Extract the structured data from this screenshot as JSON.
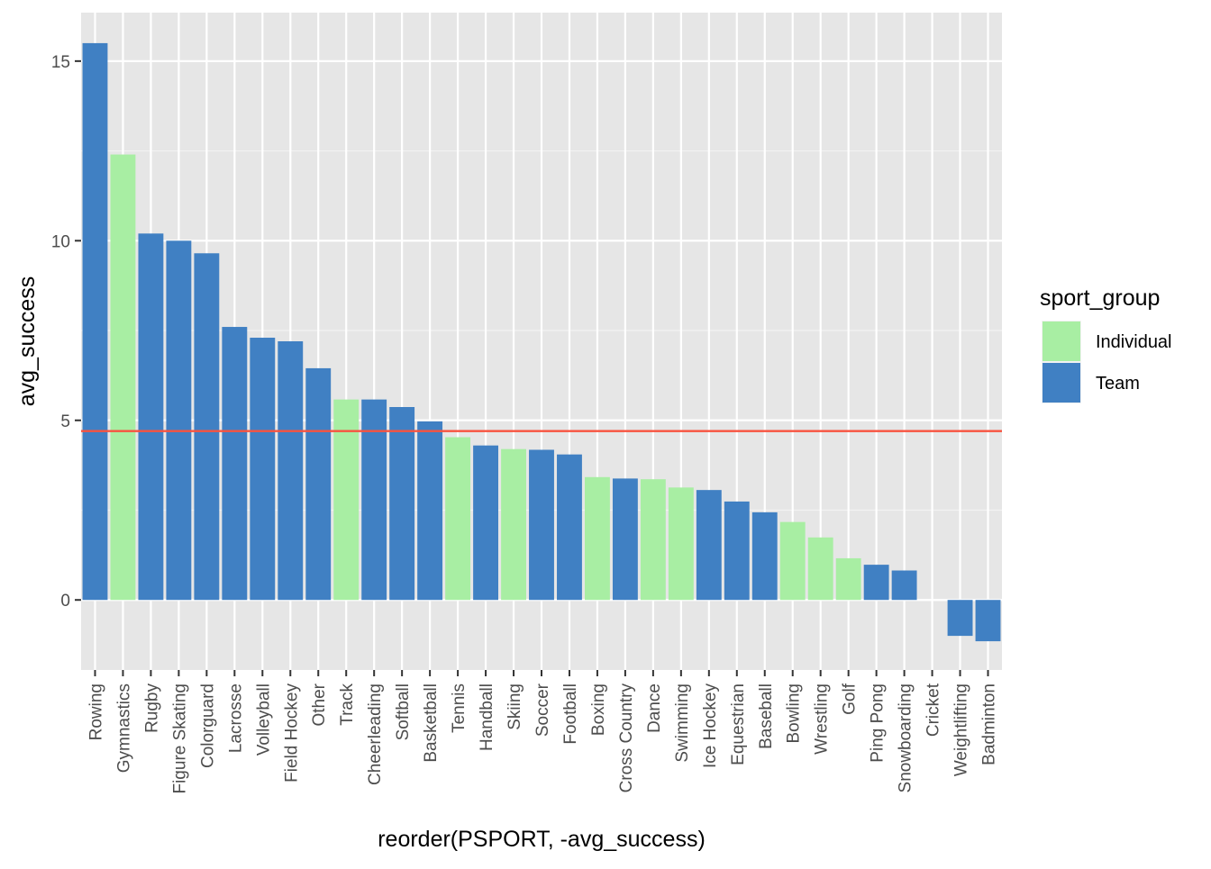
{
  "chart_data": {
    "type": "bar",
    "xlabel": "reorder(PSPORT, -avg_success)",
    "ylabel": "avg_success",
    "ylim": [
      -1.95,
      16.35
    ],
    "yticks": [
      0,
      5,
      10,
      15
    ],
    "grid": true,
    "reference_line": {
      "y": 4.7,
      "color": "#f8533f"
    },
    "legend": {
      "title": "sport_group",
      "position": "right",
      "entries": [
        {
          "name": "Individual",
          "color": "#a8eea3"
        },
        {
          "name": "Team",
          "color": "#4080c3"
        }
      ]
    },
    "categories": [
      "Rowing",
      "Gymnastics",
      "Rugby",
      "Figure Skating",
      "Colorguard",
      "Lacrosse",
      "Volleyball",
      "Field Hockey",
      "Other",
      "Track",
      "Cheerleading",
      "Softball",
      "Basketball",
      "Tennis",
      "Handball",
      "Skiing",
      "Soccer",
      "Football",
      "Boxing",
      "Cross Country",
      "Dance",
      "Swimming",
      "Ice Hockey",
      "Equestrian",
      "Baseball",
      "Bowling",
      "Wrestling",
      "Golf",
      "Ping Pong",
      "Snowboarding",
      "Cricket",
      "Weightlifting",
      "Badminton"
    ],
    "values": [
      15.5,
      12.4,
      10.2,
      10.0,
      9.65,
      7.6,
      7.3,
      7.2,
      6.45,
      5.58,
      5.58,
      5.37,
      4.97,
      4.53,
      4.3,
      4.2,
      4.18,
      4.05,
      3.42,
      3.38,
      3.36,
      3.13,
      3.06,
      2.74,
      2.44,
      2.17,
      1.74,
      1.16,
      0.98,
      0.82,
      0.0,
      -1.0,
      -1.15
    ],
    "groups": [
      "Team",
      "Individual",
      "Team",
      "Team",
      "Team",
      "Team",
      "Team",
      "Team",
      "Team",
      "Individual",
      "Team",
      "Team",
      "Team",
      "Individual",
      "Team",
      "Individual",
      "Team",
      "Team",
      "Individual",
      "Team",
      "Individual",
      "Individual",
      "Team",
      "Team",
      "Team",
      "Individual",
      "Individual",
      "Individual",
      "Team",
      "Team",
      "Team",
      "Team",
      "Team"
    ]
  }
}
